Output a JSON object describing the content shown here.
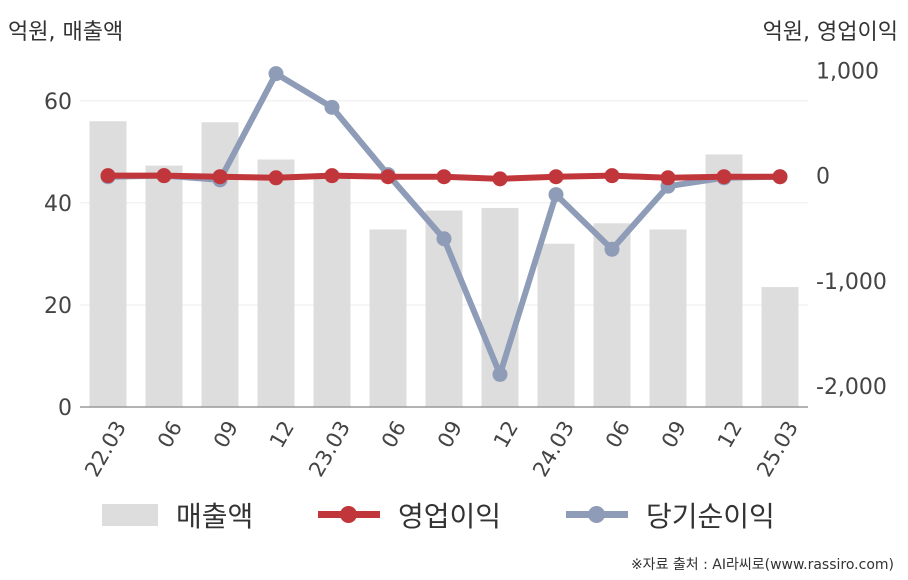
{
  "header": {
    "left_unit": "억원, 매출액",
    "right_unit": "억원, 영업이익"
  },
  "chart_data": {
    "type": "bar+line",
    "categories": [
      "22.03",
      "06",
      "09",
      "12",
      "23.03",
      "06",
      "09",
      "12",
      "24.03",
      "06",
      "09",
      "12",
      "25.03"
    ],
    "left_axis": {
      "ylim": [
        0,
        68
      ],
      "ticks": [
        0,
        20,
        40,
        60
      ],
      "tick_labels": [
        "0",
        "20",
        "40",
        "60"
      ]
    },
    "right_axis": {
      "ylim": [
        -2200,
        1100
      ],
      "ticks": [
        1000,
        0,
        -1000,
        -2000
      ],
      "tick_labels": [
        "1,000",
        "0",
        "-1,000",
        "-2,000"
      ]
    },
    "series": [
      {
        "name": "매출액",
        "type": "bar",
        "axis": "left",
        "color": "#dddddd",
        "values": [
          56,
          47.3,
          55.8,
          48.5,
          45,
          34.8,
          38.5,
          39,
          32,
          36,
          34.8,
          49.5,
          23.5
        ]
      },
      {
        "name": "영업이익",
        "type": "line",
        "axis": "right",
        "color": "#c0363a",
        "values": [
          0,
          0,
          -10,
          -20,
          0,
          -10,
          -10,
          -30,
          -10,
          0,
          -20,
          -10,
          -10
        ]
      },
      {
        "name": "당기순이익",
        "type": "line",
        "axis": "right",
        "color": "#8f9cb8",
        "values": [
          -10,
          0,
          -40,
          970,
          650,
          10,
          -600,
          -1890,
          -180,
          -700,
          -100,
          -20,
          -10
        ]
      }
    ],
    "grid": true,
    "legend_position": "bottom"
  },
  "legend": {
    "items": [
      "매출액",
      "영업이익",
      "당기순이익"
    ]
  },
  "source": "※자료 출처 : AI라씨로(www.rassiro.com)"
}
